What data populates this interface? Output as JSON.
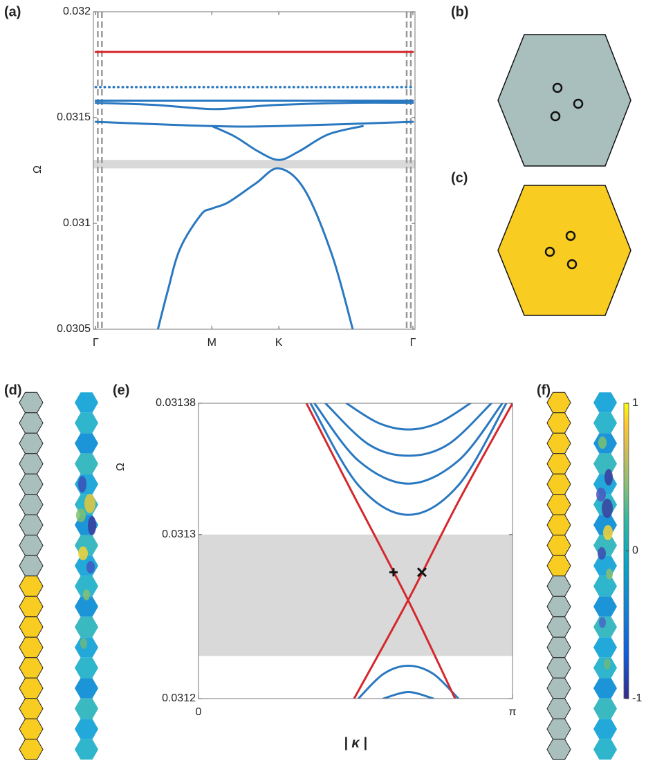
{
  "panel_labels": [
    "(a)",
    "(b)",
    "(c)",
    "(d)",
    "(e)",
    "(f)"
  ],
  "chart_data": [
    {
      "type": "line",
      "ylabel": "Ω",
      "xlim": [
        -0.02,
        2.75
      ],
      "ylim": [
        0.0305,
        0.032
      ],
      "xticks": [
        {
          "value": 0,
          "label": "Γ"
        },
        {
          "value": 1,
          "label": "M"
        },
        {
          "value": 1.577,
          "label": "K"
        },
        {
          "value": 2.732,
          "label": "Γ"
        }
      ],
      "yticks": [
        0.0305,
        0.031,
        0.0315,
        0.032
      ],
      "band": [
        0.03126,
        0.0313
      ],
      "band_color": "#d9d9d9",
      "series": [
        {
          "color": "#d4282c",
          "x": [
            0,
            2.732
          ],
          "values": [
            0.03181,
            0.03181
          ]
        },
        {
          "color": "#2a78c0",
          "dash": "dotted",
          "x": [
            0,
            2.732
          ],
          "values": [
            0.031644,
            0.031644
          ]
        },
        {
          "color": "#2a78c0",
          "x": [
            0,
            2.732
          ],
          "values": [
            0.03158,
            0.03158
          ]
        },
        {
          "color": "#2a78c0",
          "x": [
            0,
            0.5,
            1,
            1.3,
            1.577,
            2.2,
            2.732
          ],
          "values": [
            0.03157,
            0.03156,
            0.03154,
            0.03155,
            0.03156,
            0.03157,
            0.03157
          ]
        },
        {
          "color": "#2a78c0",
          "x": [
            0,
            1,
            1.577,
            2.732
          ],
          "values": [
            0.03148,
            0.03146,
            0.03146,
            0.03148
          ]
        },
        {
          "color": "#2a78c0",
          "x": [
            1,
            1.2,
            1.4,
            1.577,
            1.75,
            2.0,
            2.3
          ],
          "values": [
            0.03146,
            0.03141,
            0.03134,
            0.0313,
            0.03134,
            0.03142,
            0.03146
          ]
        },
        {
          "color": "#2a78c0",
          "x": [
            0.536,
            0.62,
            0.726,
            0.905,
            1,
            1.143,
            1.381,
            1.577,
            1.798,
            2.036,
            2.214
          ],
          "values": [
            0.0305,
            0.03068,
            0.03088,
            0.03104,
            0.03107,
            0.0311,
            0.03119,
            0.03126,
            0.03116,
            0.03085,
            0.0305
          ]
        }
      ]
    },
    {
      "type": "line",
      "ylabel": "Ω",
      "xlabel": "| κ |",
      "xlim": [
        0,
        3.1416
      ],
      "ylim": [
        0.0312,
        0.03138
      ],
      "xticks": [
        0,
        {
          "value": 3.1416,
          "label": "π"
        }
      ],
      "yticks": [
        0.0312,
        0.0313,
        0.03138
      ],
      "band": [
        0.031226,
        0.0313
      ],
      "band_color": "#d9d9d9",
      "series": [
        {
          "color": "#2a78c0",
          "x": [
            1.48,
            1.8,
            2.1,
            2.4,
            2.72
          ],
          "values": [
            0.03138,
            0.031368,
            0.031364,
            0.031368,
            0.03138
          ]
        },
        {
          "color": "#2a78c0",
          "x": [
            1.27,
            1.7,
            2.1,
            2.5,
            2.93
          ],
          "values": [
            0.03138,
            0.031355,
            0.031348,
            0.031355,
            0.03138
          ]
        },
        {
          "color": "#2a78c0",
          "x": [
            1.16,
            1.6,
            2.1,
            2.6,
            3.04
          ],
          "values": [
            0.03138,
            0.031345,
            0.031331,
            0.031345,
            0.03138
          ]
        },
        {
          "color": "#2a78c0",
          "x": [
            1.12,
            1.6,
            2.1,
            2.6,
            3.08
          ],
          "values": [
            0.03138,
            0.03133,
            0.031312,
            0.03133,
            0.03138
          ]
        },
        {
          "color": "#2a78c0",
          "x": [
            1.6,
            1.85,
            2.1,
            2.35,
            2.6
          ],
          "values": [
            0.0312,
            0.031215,
            0.03122,
            0.031215,
            0.0312
          ]
        },
        {
          "color": "#2a78c0",
          "x": [
            1.85,
            2.1,
            2.35
          ],
          "values": [
            0.0312,
            0.031204,
            0.0312
          ]
        },
        {
          "color": "#d4282c",
          "x": [
            1.08,
            1.5,
            2.097,
            2.567
          ],
          "values": [
            0.03138,
            0.03133,
            0.03126,
            0.0312
          ]
        },
        {
          "color": "#d4282c",
          "x": [
            1.557,
            2.097,
            2.6,
            3.1416
          ],
          "values": [
            0.0312,
            0.03126,
            0.03132,
            0.03138
          ]
        }
      ],
      "markers": [
        {
          "symbol": "+",
          "x": 1.951,
          "y": 0.031277
        },
        {
          "symbol": "×",
          "x": 2.235,
          "y": 0.031277
        }
      ]
    }
  ],
  "colorbar": {
    "lim": [
      -1,
      1
    ],
    "ticks": [
      -1,
      0,
      1
    ]
  }
}
